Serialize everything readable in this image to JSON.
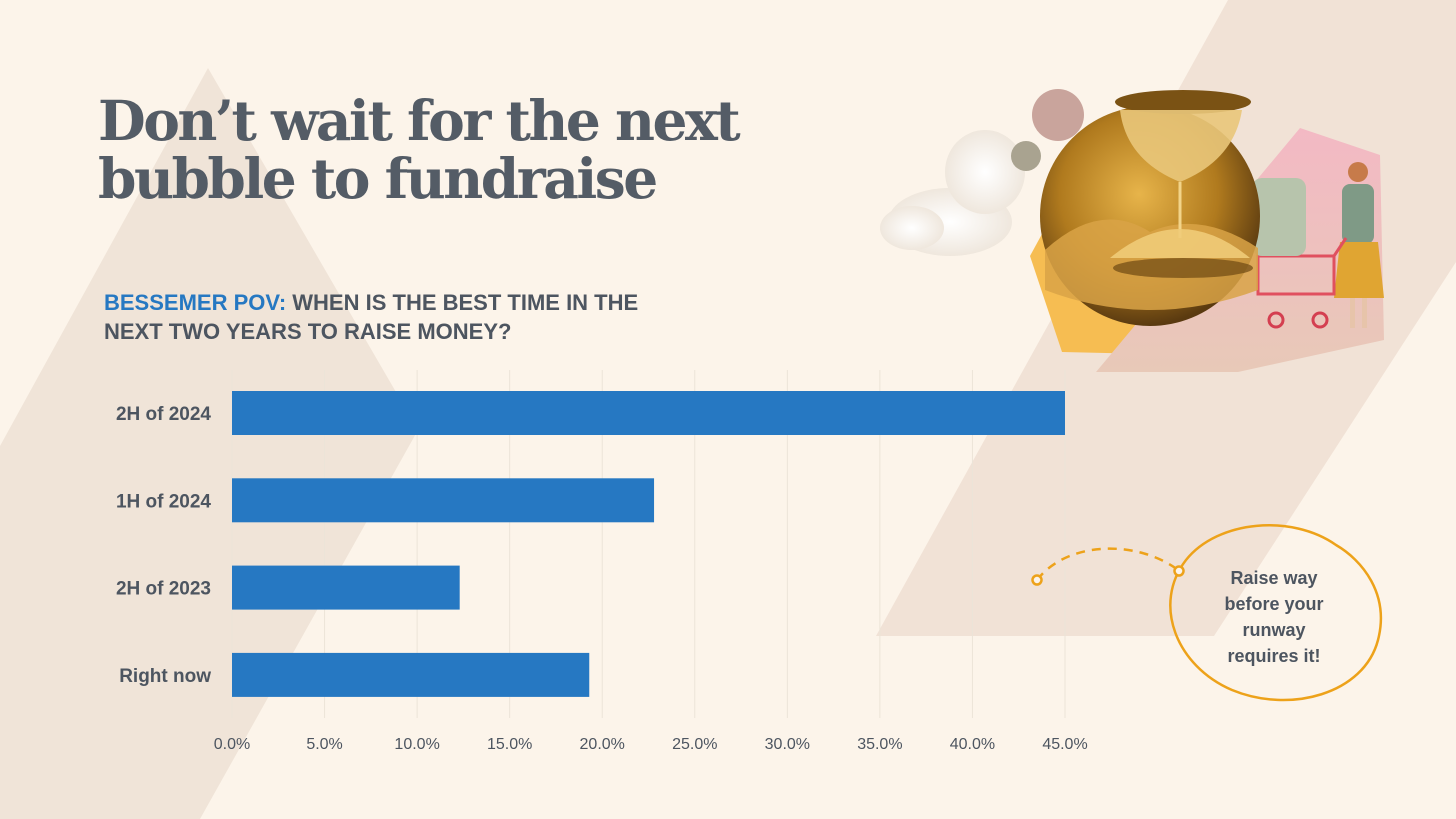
{
  "slide": {
    "title_lines": [
      "Don’t wait for the next",
      "bubble to fundraise"
    ],
    "subtitle_accent": "BESSEMER POV:",
    "subtitle_lines": [
      "WHEN IS THE BEST TIME IN THE",
      "NEXT TWO YEARS TO RAISE MONEY?"
    ],
    "callout_lines": [
      "Raise way",
      "before your",
      "runway",
      "requires it!"
    ],
    "illustration_icon": "hourglass-shopping-cart-collage"
  },
  "colors": {
    "background": "#fcf4ea",
    "bar": "#2678c2",
    "accent": "#2678c2",
    "callout_ring": "#eda21a",
    "text": "#4d5560"
  },
  "chart_data": {
    "type": "bar",
    "orientation": "horizontal",
    "categories": [
      "2H of 2024",
      "1H of 2024",
      "2H of 2023",
      "Right now"
    ],
    "values": [
      45.0,
      22.8,
      12.3,
      19.3
    ],
    "x_ticks": [
      "0.0%",
      "5.0%",
      "10.0%",
      "15.0%",
      "20.0%",
      "25.0%",
      "30.0%",
      "35.0%",
      "40.0%",
      "45.0%"
    ],
    "xlim": [
      0,
      45
    ],
    "grid": true,
    "legend": "none"
  }
}
